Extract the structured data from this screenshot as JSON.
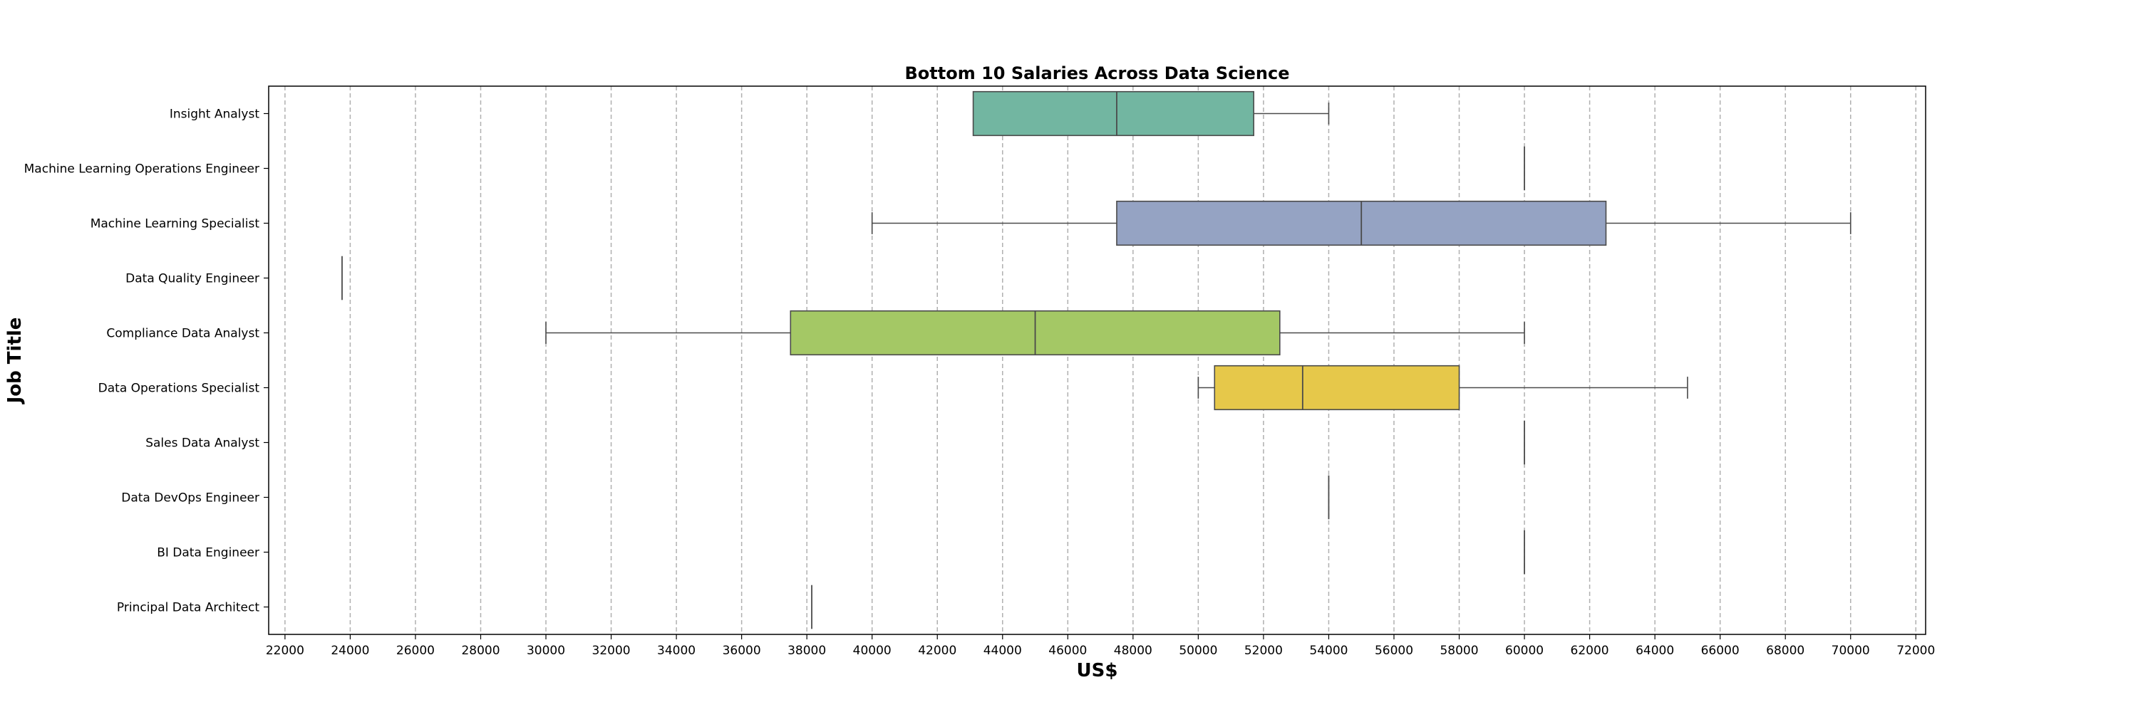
{
  "chart_data": {
    "type": "box",
    "orientation": "horizontal",
    "title": "Bottom 10 Salaries Across Data Science",
    "xlabel": "US$",
    "ylabel": "Job Title",
    "xlim": [
      21500,
      72300
    ],
    "xticks": [
      22000,
      24000,
      26000,
      28000,
      30000,
      32000,
      34000,
      36000,
      38000,
      40000,
      42000,
      44000,
      46000,
      48000,
      50000,
      52000,
      54000,
      56000,
      58000,
      60000,
      62000,
      64000,
      66000,
      68000,
      70000,
      72000
    ],
    "grid": "vertical dashed",
    "categories": [
      "Insight Analyst",
      "Machine Learning Operations Engineer",
      "Machine Learning Specialist",
      "Data Quality Engineer",
      "Compliance Data Analyst",
      "Data Operations Specialist",
      "Sales Data Analyst",
      "Data DevOps Engineer",
      "BI Data Engineer",
      "Principal Data Architect"
    ],
    "boxes": [
      {
        "min": 43100,
        "q1": 43100,
        "median": 47500,
        "q3": 51700,
        "max": 54000,
        "color": "#72b6a1"
      },
      {
        "min": 60000,
        "q1": 60000,
        "median": 60000,
        "q3": 60000,
        "max": 60000,
        "color": "#e99675"
      },
      {
        "min": 40000,
        "q1": 47500,
        "median": 55000,
        "q3": 62500,
        "max": 70000,
        "color": "#95a3c3"
      },
      {
        "min": 23750,
        "q1": 23750,
        "median": 23750,
        "q3": 23750,
        "max": 23750,
        "color": "#db96c0"
      },
      {
        "min": 30000,
        "q1": 37500,
        "median": 45000,
        "q3": 52500,
        "max": 60000,
        "color": "#a4c865"
      },
      {
        "min": 50000,
        "q1": 50500,
        "median": 53200,
        "q3": 58000,
        "max": 65000,
        "color": "#e6c84a"
      },
      {
        "min": 60000,
        "q1": 60000,
        "median": 60000,
        "q3": 60000,
        "max": 60000,
        "color": "#d6c29b"
      },
      {
        "min": 54000,
        "q1": 54000,
        "median": 54000,
        "q3": 54000,
        "max": 54000,
        "color": "#b3b3b3"
      },
      {
        "min": 60000,
        "q1": 60000,
        "median": 60000,
        "q3": 60000,
        "max": 60000,
        "color": "#72b6a1"
      },
      {
        "min": 38150,
        "q1": 38150,
        "median": 38150,
        "q3": 38150,
        "max": 38150,
        "color": "#e99675"
      }
    ]
  }
}
